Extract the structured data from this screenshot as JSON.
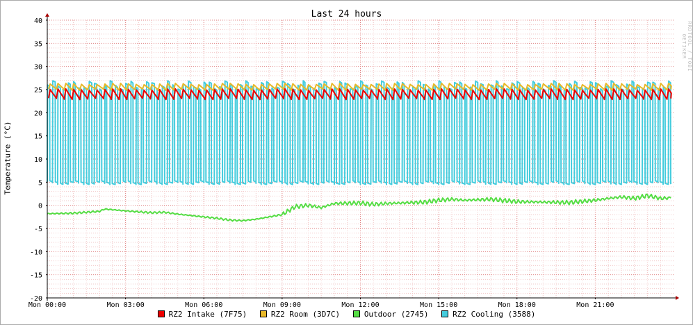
{
  "chart_data": {
    "type": "line",
    "title": "Last 24 hours",
    "ylabel": "Temperature (°C)",
    "xlabel": "",
    "watermark": "RRDTOOL / TOBI OETIKER",
    "ylim": [
      -20,
      40
    ],
    "yticks": [
      40,
      35,
      30,
      25,
      20,
      15,
      10,
      5,
      0,
      -5,
      -10,
      -15,
      -20
    ],
    "xlim": [
      0,
      24
    ],
    "xticks": [
      {
        "x": 0,
        "label": "Mon 00:00"
      },
      {
        "x": 3,
        "label": "Mon 03:00"
      },
      {
        "x": 6,
        "label": "Mon 06:00"
      },
      {
        "x": 9,
        "label": "Mon 09:00"
      },
      {
        "x": 12,
        "label": "Mon 12:00"
      },
      {
        "x": 15,
        "label": "Mon 15:00"
      },
      {
        "x": 18,
        "label": "Mon 18:00"
      },
      {
        "x": 21,
        "label": "Mon 21:00"
      }
    ],
    "grid": true,
    "legend_position": "bottom",
    "series": [
      {
        "name": "RZ2 Intake (7F75)",
        "color": "#ee0000",
        "pattern": "sawtooth",
        "cycle_hours": 0.3,
        "low": 23.0,
        "high": 25.0,
        "x_range": [
          0.05,
          23.9
        ]
      },
      {
        "name": "RZ2 Room (3D7C)",
        "color": "#e8b828",
        "pattern": "sawtooth",
        "cycle_hours": 0.3,
        "low": 25.0,
        "high": 26.2,
        "x_range": [
          0.05,
          23.9
        ]
      },
      {
        "name": "Outdoor (2745)",
        "color": "#55dd44",
        "pattern": "line",
        "x": [
          0,
          1,
          2,
          2.2,
          3,
          4,
          4.5,
          5,
          6,
          6.5,
          7,
          7.5,
          8,
          9,
          9.5,
          10,
          10.5,
          11,
          12,
          12.5,
          13,
          14,
          14.5,
          15,
          15.5,
          16,
          17,
          18,
          19,
          20,
          21,
          21.5,
          22,
          22.5,
          23,
          23.5,
          23.9
        ],
        "values": [
          -1.8,
          -1.7,
          -1.3,
          -0.8,
          -1.2,
          -1.6,
          -1.5,
          -1.9,
          -2.5,
          -2.8,
          -3.2,
          -3.3,
          -3.0,
          -2.0,
          -0.3,
          0,
          -0.5,
          0.4,
          0.5,
          0.2,
          0.4,
          0.6,
          0.7,
          1.1,
          1.3,
          1.1,
          1.3,
          0.8,
          0.7,
          0.6,
          1.1,
          1.5,
          1.8,
          1.5,
          2.1,
          1.5,
          1.6
        ]
      },
      {
        "name": "RZ2 Cooling (3588)",
        "color": "#44ccdd",
        "pattern": "square",
        "cycle_hours": 0.2,
        "low": 4.8,
        "high": 26.0,
        "x_range": [
          0,
          23.9
        ]
      }
    ]
  }
}
